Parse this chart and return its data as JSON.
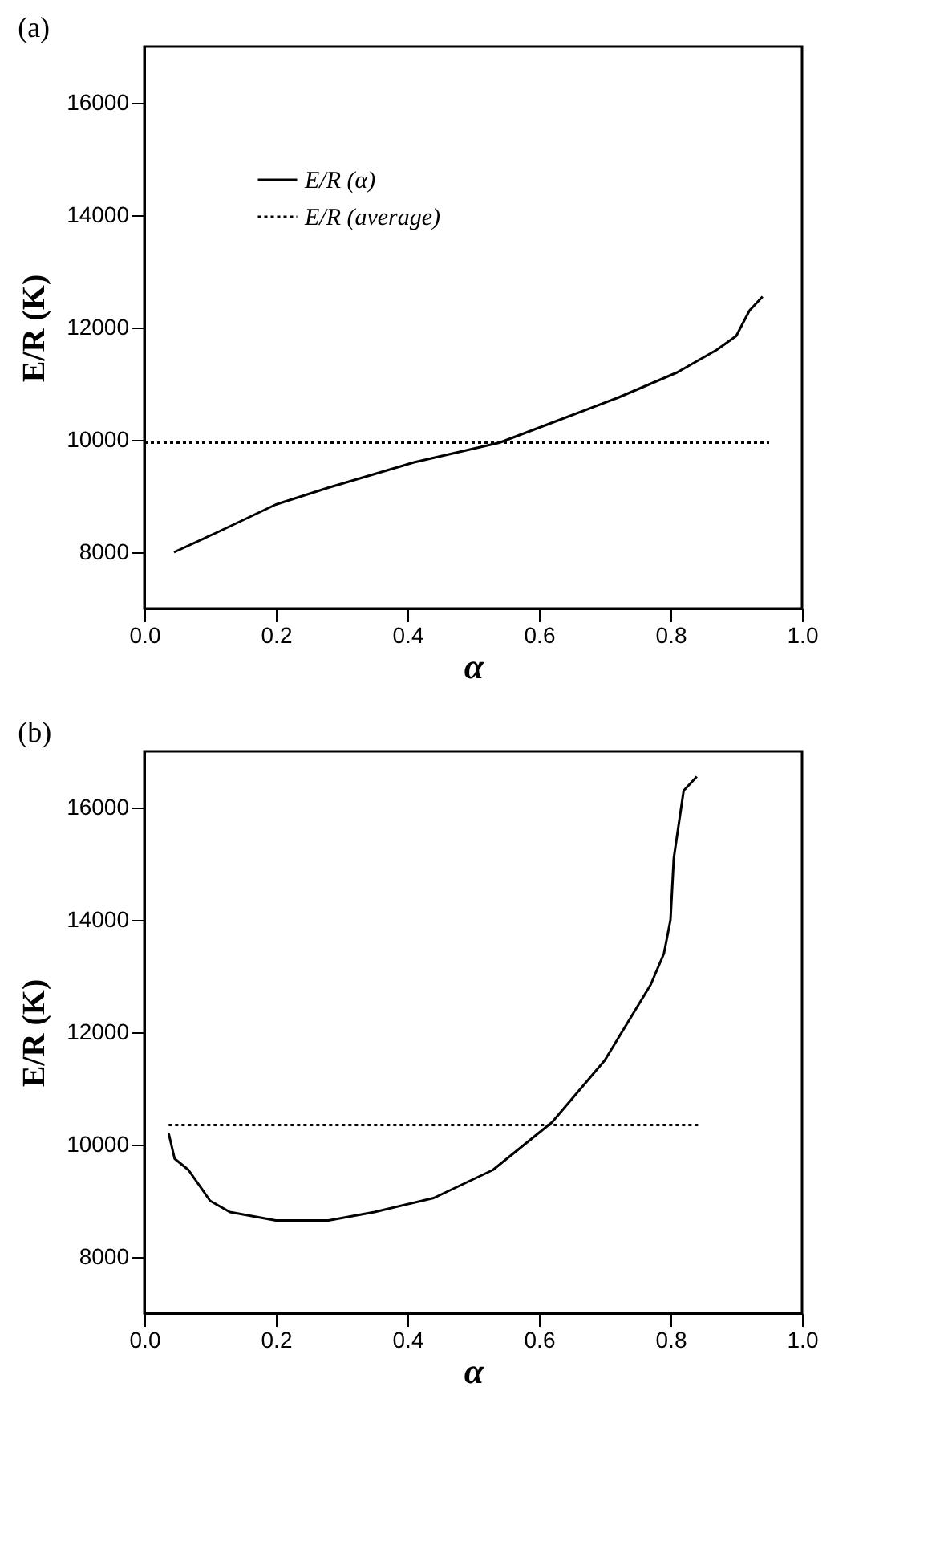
{
  "chart_data": [
    {
      "type": "line",
      "title": "(a)",
      "xlabel": "α",
      "ylabel": "E/R (K)",
      "xlim": [
        0,
        1
      ],
      "xticks": [
        {
          "value": 0,
          "label": "0.0"
        },
        {
          "value": 0.2,
          "label": "0.2"
        },
        {
          "value": 0.4,
          "label": "0.4"
        },
        {
          "value": 0.6,
          "label": "0.6"
        },
        {
          "value": 0.8,
          "label": "0.8"
        },
        {
          "value": 1,
          "label": "1.0"
        }
      ],
      "ylim": [
        7000,
        17000
      ],
      "yticks": [
        8000,
        10000,
        12000,
        14000,
        16000
      ],
      "grid": false,
      "legend": "top left",
      "series": [
        {
          "name": "E/R (α)",
          "color": "#000000",
          "line_style": "solid",
          "x": [
            0.045,
            0.11,
            0.2,
            0.28,
            0.41,
            0.54,
            0.63,
            0.72,
            0.81,
            0.87,
            0.9,
            0.92,
            0.94
          ],
          "values": [
            8000,
            8350,
            8850,
            9150,
            9600,
            9950,
            10350,
            10750,
            11200,
            11600,
            11850,
            12300,
            12550
          ]
        },
        {
          "name": "E/R (average)",
          "color": "#000000",
          "line_style": "dotted",
          "x": [
            0,
            0.95
          ],
          "values": [
            9950,
            9950
          ]
        }
      ]
    },
    {
      "type": "line",
      "title": "(b)",
      "xlabel": "α",
      "ylabel": "E/R (K)",
      "xlim": [
        0,
        1
      ],
      "xticks": [
        {
          "value": 0,
          "label": "0.0"
        },
        {
          "value": 0.2,
          "label": "0.2"
        },
        {
          "value": 0.4,
          "label": "0.4"
        },
        {
          "value": 0.6,
          "label": "0.6"
        },
        {
          "value": 0.8,
          "label": "0.8"
        },
        {
          "value": 1,
          "label": "1.0"
        }
      ],
      "ylim": [
        7000,
        17000
      ],
      "yticks": [
        8000,
        10000,
        12000,
        14000,
        16000
      ],
      "grid": false,
      "legend": "top left",
      "series": [
        {
          "name": "E/R (α)",
          "color": "#000000",
          "line_style": "solid",
          "x": [
            0.037,
            0.046,
            0.067,
            0.1,
            0.13,
            0.2,
            0.28,
            0.35,
            0.44,
            0.53,
            0.62,
            0.7,
            0.77,
            0.79,
            0.8,
            0.805,
            0.82,
            0.84
          ],
          "values": [
            10200,
            9750,
            9550,
            9000,
            8800,
            8650,
            8650,
            8800,
            9050,
            9550,
            10400,
            11500,
            12850,
            13400,
            14000,
            15100,
            16300,
            16550
          ]
        },
        {
          "name": "E/R (average)",
          "color": "#000000",
          "line_style": "dotted",
          "x": [
            0.037,
            0.845
          ],
          "values": [
            10350,
            10350
          ]
        }
      ]
    }
  ]
}
